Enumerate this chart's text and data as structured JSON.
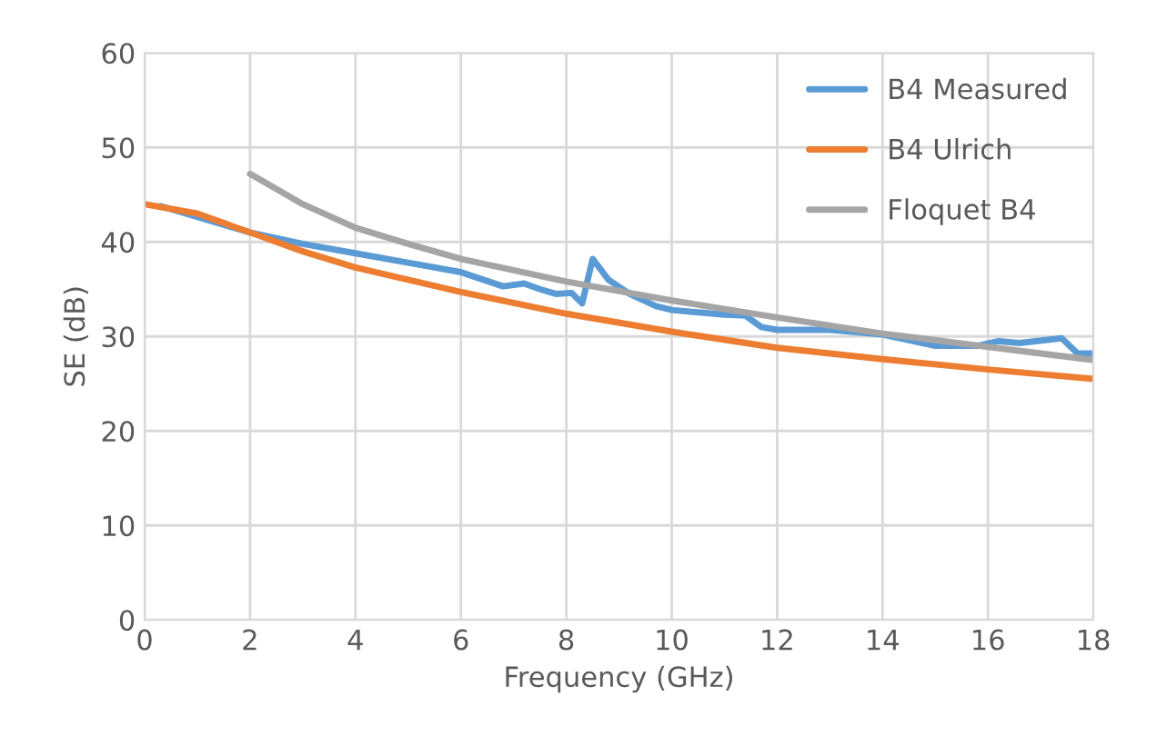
{
  "chart_data": {
    "type": "line",
    "xlabel": "Frequency (GHz)",
    "ylabel": "SE (dB)",
    "xlim": [
      0,
      18
    ],
    "ylim": [
      0,
      60
    ],
    "xticks": [
      0,
      2,
      4,
      6,
      8,
      10,
      12,
      14,
      16,
      18
    ],
    "yticks": [
      0,
      10,
      20,
      30,
      40,
      50,
      60
    ],
    "grid": true,
    "legend": "top right",
    "marker": "none",
    "line_style": "solid",
    "series": [
      {
        "name": "B4 Measured",
        "color": "#5b9bd5",
        "x": [
          0.3,
          2,
          3,
          4,
          5,
          6,
          6.8,
          7.2,
          7.5,
          7.8,
          8.1,
          8.3,
          8.5,
          8.8,
          9.2,
          9.7,
          10,
          11,
          11.4,
          11.7,
          12,
          13,
          14,
          15,
          15.8,
          16.2,
          16.6,
          17.4,
          17.7,
          18
        ],
        "values": [
          43.8,
          41,
          39.8,
          38.8,
          37.8,
          36.8,
          35.3,
          35.6,
          35,
          34.5,
          34.6,
          33.5,
          38.2,
          36,
          34.5,
          33.2,
          32.8,
          32.3,
          32.2,
          31,
          30.7,
          30.7,
          30.2,
          29,
          29,
          29.5,
          29.3,
          29.8,
          28.2,
          28.2
        ]
      },
      {
        "name": "B4 Ulrich",
        "color": "#ed7d31",
        "x": [
          0,
          1,
          2,
          3,
          4,
          6,
          8,
          10,
          12,
          14,
          16,
          18
        ],
        "values": [
          44,
          43,
          41,
          39,
          37.3,
          34.7,
          32.4,
          30.5,
          28.8,
          27.6,
          26.5,
          25.5
        ]
      },
      {
        "name": "Floquet B4",
        "color": "#a5a5a5",
        "x": [
          2,
          3,
          4,
          5,
          6,
          7,
          8,
          10,
          12,
          14,
          16,
          18
        ],
        "values": [
          47.2,
          44,
          41.5,
          39.8,
          38.2,
          37,
          35.8,
          33.8,
          32,
          30.3,
          28.9,
          27.5
        ]
      }
    ]
  }
}
